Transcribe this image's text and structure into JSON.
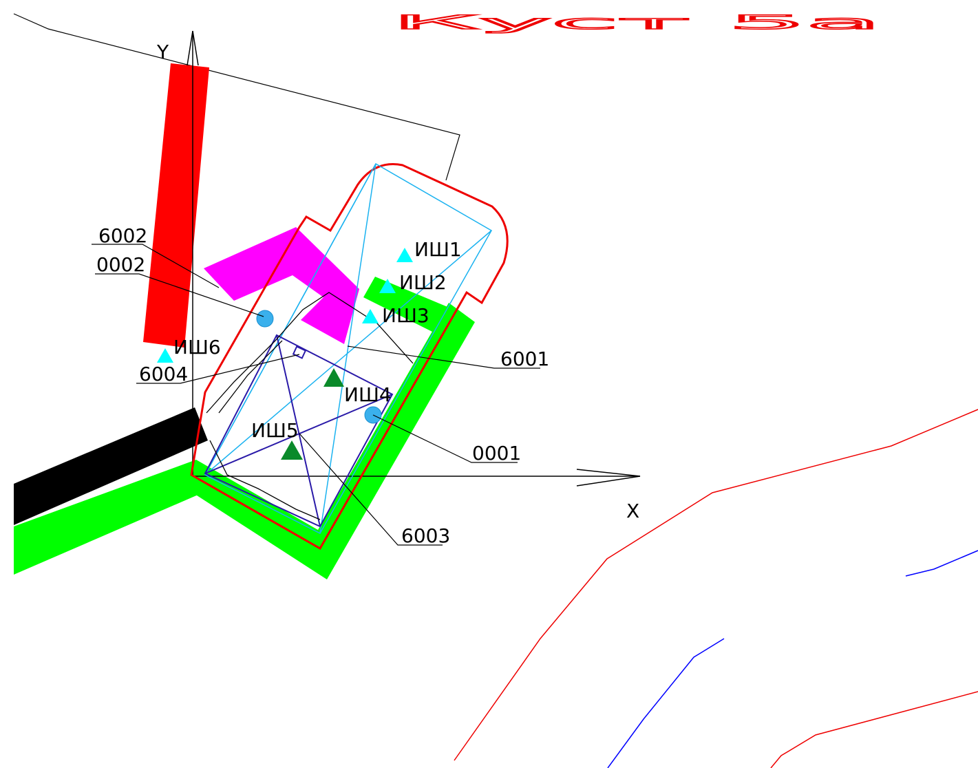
{
  "title": "Куст 5а",
  "axes": {
    "x": "X",
    "y": "Y"
  },
  "sources": [
    "6002",
    "0002",
    "6004",
    "6001",
    "0001",
    "6003"
  ],
  "wells": [
    "ИШ1",
    "ИШ2",
    "ИШ3",
    "ИШ4",
    "ИШ5",
    "ИШ6"
  ]
}
